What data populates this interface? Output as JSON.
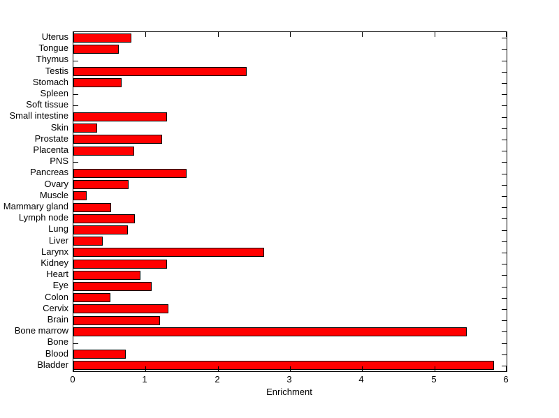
{
  "chart_data": {
    "type": "bar",
    "orientation": "horizontal",
    "title": "",
    "xlabel": "Enrichment",
    "ylabel": "",
    "xlim": [
      0,
      6
    ],
    "xticks": [
      0,
      1,
      2,
      3,
      4,
      5,
      6
    ],
    "grid": false,
    "legend": null,
    "row_order": "top-to-bottom",
    "bar_color": "#FF0000",
    "bar_edge_color": "#000000",
    "axis_color": "#000000",
    "background_color": "#FFFFFF",
    "categories": [
      "Uterus",
      "Tongue",
      "Thymus",
      "Testis",
      "Stomach",
      "Spleen",
      "Soft tissue",
      "Small intestine",
      "Skin",
      "Prostate",
      "Placenta",
      "PNS",
      "Pancreas",
      "Ovary",
      "Muscle",
      "Mammary gland",
      "Lymph node",
      "Lung",
      "Liver",
      "Larynx",
      "Kidney",
      "Heart",
      "Eye",
      "Colon",
      "Cervix",
      "Brain",
      "Bone marrow",
      "Bone",
      "Blood",
      "Bladder"
    ],
    "values": [
      0.8,
      0.63,
      0,
      2.4,
      0.67,
      0,
      0,
      1.3,
      0.33,
      1.23,
      0.84,
      0,
      1.57,
      0.76,
      0.18,
      0.52,
      0.85,
      0.75,
      0.41,
      2.64,
      1.3,
      0.93,
      1.08,
      0.51,
      1.32,
      1.2,
      5.45,
      0,
      0.73,
      5.83
    ]
  }
}
